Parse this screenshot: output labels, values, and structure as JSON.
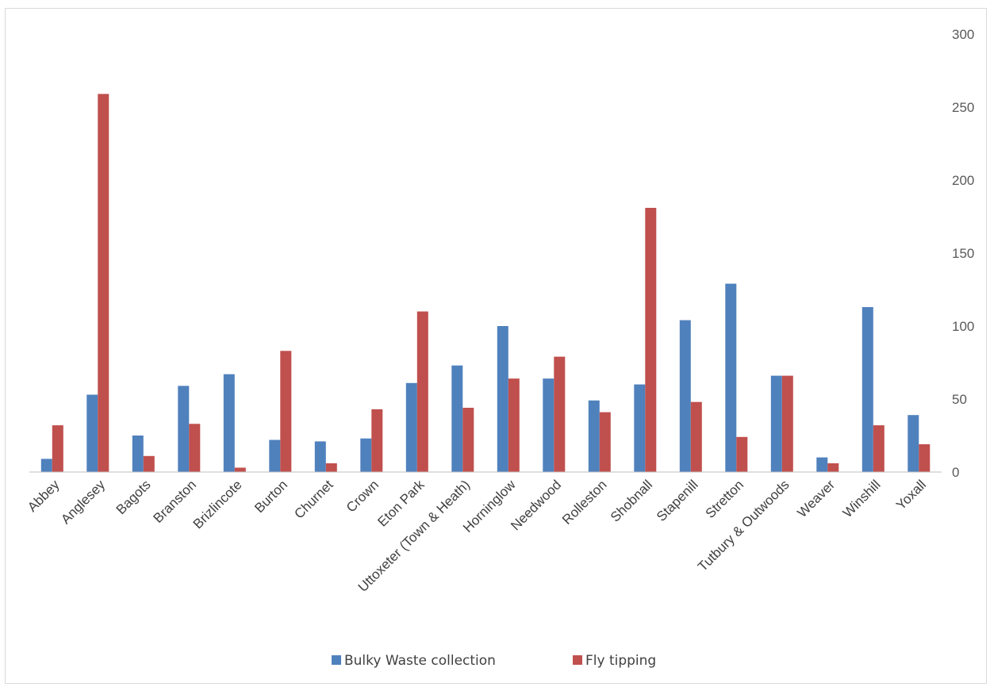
{
  "chart_data": {
    "type": "bar",
    "categories": [
      "Abbey",
      "Anglesey",
      "Bagots",
      "Branston",
      "Brizlincote",
      "Burton",
      "Churnet",
      "Crown",
      "Eton Park",
      "Uttoxeter (Town & Heath)",
      "Horninglow",
      "Needwood",
      "Rolleston",
      "Shobnall",
      "Stapenill",
      "Stretton",
      "Tutbury & Outwoods",
      "Weaver",
      "Winshill",
      "Yoxall"
    ],
    "series": [
      {
        "name": "Bulky Waste collection",
        "color": "#4f81bd",
        "values": [
          9,
          53,
          25,
          59,
          67,
          22,
          21,
          23,
          61,
          73,
          100,
          64,
          49,
          60,
          104,
          129,
          66,
          10,
          113,
          39
        ]
      },
      {
        "name": "Fly tipping",
        "color": "#c0504d",
        "values": [
          32,
          259,
          11,
          33,
          3,
          83,
          6,
          43,
          110,
          44,
          64,
          79,
          41,
          181,
          48,
          24,
          66,
          6,
          32,
          19
        ]
      }
    ],
    "y_ticks": [
      "0",
      "50",
      "100",
      "150",
      "200",
      "250",
      "300"
    ],
    "ylim": [
      0,
      300
    ],
    "y_axis_side": "right",
    "grid": false,
    "legend_position": "bottom",
    "title": "",
    "xlabel": "",
    "ylabel": ""
  }
}
